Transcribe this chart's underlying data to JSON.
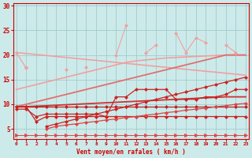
{
  "x": [
    0,
    1,
    2,
    3,
    4,
    5,
    6,
    7,
    8,
    9,
    10,
    11,
    12,
    13,
    14,
    15,
    16,
    17,
    18,
    19,
    20,
    21,
    22,
    23
  ],
  "lines": [
    {
      "y": [
        20.5,
        20.3,
        20.1,
        19.9,
        19.7,
        19.5,
        19.3,
        19.1,
        18.9,
        18.7,
        18.5,
        18.3,
        18.1,
        17.9,
        17.7,
        17.5,
        17.3,
        17.1,
        16.9,
        16.7,
        16.5,
        16.3,
        16.1,
        15.9
      ],
      "color": "#f0a0a0",
      "lw": 1.2,
      "marker": null,
      "ms": 0,
      "zorder": 2
    },
    {
      "y": [
        13.0,
        13.5,
        14.0,
        14.5,
        15.0,
        15.5,
        16.0,
        16.5,
        17.0,
        17.5,
        18.0,
        18.5,
        18.8,
        19.0,
        19.2,
        19.4,
        19.5,
        19.6,
        19.7,
        19.8,
        19.9,
        20.0,
        20.0,
        20.0
      ],
      "color": "#f0a0a0",
      "lw": 1.2,
      "marker": null,
      "ms": 0,
      "zorder": 2
    },
    {
      "y": [
        null,
        17.5,
        null,
        null,
        null,
        17.0,
        null,
        17.5,
        null,
        null,
        20.0,
        26.0,
        null,
        20.5,
        22.0,
        null,
        24.5,
        20.5,
        23.5,
        22.5,
        null,
        22.0,
        20.5,
        null
      ],
      "color": "#f0a0a0",
      "lw": 0.8,
      "marker": "D",
      "ms": 2.0,
      "zorder": 3
    },
    {
      "y": [
        20.5,
        17.3,
        null,
        null,
        null,
        null,
        null,
        null,
        null,
        null,
        null,
        null,
        null,
        null,
        null,
        null,
        null,
        null,
        null,
        null,
        null,
        null,
        20.5,
        null
      ],
      "color": "#f0a0a0",
      "lw": 0.9,
      "marker": "D",
      "ms": 2.0,
      "zorder": 3
    },
    {
      "y": [
        9.5,
        10.0,
        10.5,
        11.0,
        11.5,
        12.0,
        12.5,
        13.0,
        13.5,
        14.0,
        14.5,
        15.0,
        15.5,
        16.0,
        16.5,
        17.0,
        17.5,
        18.0,
        18.5,
        19.0,
        19.5,
        20.0,
        20.0,
        20.0
      ],
      "color": "#e07070",
      "lw": 1.3,
      "marker": null,
      "ms": 0,
      "zorder": 2
    },
    {
      "y": [
        9.5,
        9.5,
        9.6,
        9.7,
        9.8,
        9.9,
        10.0,
        10.1,
        10.2,
        10.3,
        10.4,
        10.5,
        10.6,
        10.7,
        10.8,
        10.9,
        11.0,
        11.1,
        11.2,
        11.3,
        11.4,
        11.5,
        11.5,
        11.5
      ],
      "color": "#cc3333",
      "lw": 1.3,
      "marker": null,
      "ms": 0,
      "zorder": 2
    },
    {
      "y": [
        9.0,
        9.0,
        7.5,
        8.0,
        8.0,
        8.0,
        8.0,
        8.0,
        8.0,
        7.5,
        11.5,
        11.5,
        13.0,
        13.0,
        13.0,
        13.0,
        11.0,
        11.0,
        11.0,
        11.5,
        11.5,
        12.0,
        13.0,
        13.0
      ],
      "color": "#cc2222",
      "lw": 0.9,
      "marker": "D",
      "ms": 2.0,
      "zorder": 3
    },
    {
      "y": [
        9.5,
        9.5,
        9.5,
        9.5,
        9.5,
        9.5,
        9.5,
        9.5,
        9.5,
        9.5,
        9.5,
        9.5,
        9.5,
        9.5,
        9.5,
        9.5,
        9.5,
        9.5,
        9.5,
        9.5,
        9.5,
        9.5,
        9.5,
        9.5
      ],
      "color": "#bb2222",
      "lw": 0.9,
      "marker": "D",
      "ms": 2.0,
      "zorder": 3
    },
    {
      "y": [
        9.5,
        9.5,
        6.5,
        7.5,
        7.5,
        7.5,
        7.5,
        7.5,
        7.5,
        7.5,
        7.5,
        7.5,
        7.5,
        7.5,
        7.5,
        7.5,
        7.5,
        7.5,
        7.5,
        7.5,
        7.5,
        7.5,
        7.5,
        7.5
      ],
      "color": "#cc2222",
      "lw": 0.9,
      "marker": "D",
      "ms": 2.0,
      "zorder": 3
    },
    {
      "y": [
        null,
        null,
        null,
        5.5,
        6.0,
        6.5,
        7.0,
        7.5,
        8.0,
        8.5,
        9.0,
        9.5,
        10.0,
        10.5,
        11.0,
        11.5,
        12.0,
        12.5,
        13.0,
        13.5,
        14.0,
        14.5,
        15.0,
        15.5
      ],
      "color": "#cc2222",
      "lw": 0.9,
      "marker": "D",
      "ms": 2.0,
      "zorder": 3
    },
    {
      "y": [
        null,
        null,
        null,
        5.0,
        5.5,
        5.8,
        6.0,
        6.3,
        6.5,
        6.8,
        7.0,
        7.3,
        7.5,
        7.8,
        8.0,
        8.3,
        8.5,
        8.8,
        9.0,
        9.2,
        9.5,
        9.7,
        10.0,
        10.2
      ],
      "color": "#dd4444",
      "lw": 0.9,
      "marker": "D",
      "ms": 2.0,
      "zorder": 3
    },
    {
      "y": [
        3.8,
        3.8,
        3.8,
        3.8,
        3.8,
        3.8,
        3.8,
        3.8,
        3.8,
        3.8,
        3.8,
        3.8,
        3.8,
        3.8,
        3.8,
        3.8,
        3.8,
        3.8,
        3.8,
        3.8,
        3.8,
        3.8,
        3.8,
        3.8
      ],
      "color": "#dd4444",
      "lw": 0.7,
      "marker": ">",
      "ms": 3.0,
      "zorder": 3
    }
  ],
  "xlim": [
    -0.3,
    23.3
  ],
  "ylim": [
    3.0,
    30.5
  ],
  "yticks": [
    5,
    10,
    15,
    20,
    25,
    30
  ],
  "xticks": [
    0,
    1,
    2,
    3,
    4,
    5,
    6,
    7,
    8,
    9,
    10,
    11,
    12,
    13,
    14,
    15,
    16,
    17,
    18,
    19,
    20,
    21,
    22,
    23
  ],
  "xlabel": "Vent moyen/en rafales ( km/h )",
  "bg_color": "#cdeaea",
  "grid_color": "#a0cccc",
  "axis_color": "#cc0000",
  "tick_color": "#cc0000",
  "label_color": "#cc0000"
}
